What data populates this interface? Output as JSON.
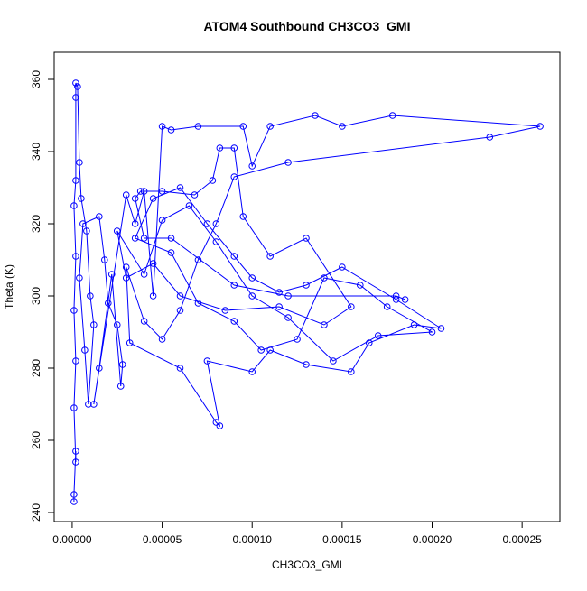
{
  "chart_data": {
    "type": "line",
    "title": "ATOM4 Southbound CH3CO3_GMI",
    "x_label": "CH3CO3_GMI",
    "y_label": "Theta (K)",
    "xlim": [
      -1e-05,
      0.000271
    ],
    "ylim": [
      237.5,
      367.5
    ],
    "xticks": [
      {
        "value": 0,
        "label": "0.00000"
      },
      {
        "value": 5e-05,
        "label": "0.00005"
      },
      {
        "value": 0.0001,
        "label": "0.00010"
      },
      {
        "value": 0.00015,
        "label": "0.00015"
      },
      {
        "value": 0.0002,
        "label": "0.00020"
      },
      {
        "value": 0.00025,
        "label": "0.00025"
      }
    ],
    "yticks": [
      240,
      260,
      280,
      300,
      320,
      340,
      360
    ],
    "color": "#0000ff",
    "x": [
      1e-06,
      1e-06,
      2e-06,
      2e-06,
      1e-06,
      2e-06,
      1e-06,
      2e-06,
      1e-06,
      2e-06,
      2e-06,
      2e-06,
      3e-06,
      4e-06,
      5e-06,
      8e-06,
      1e-05,
      1.2e-05,
      9e-06,
      7e-06,
      4e-06,
      6e-06,
      1.5e-05,
      1.8e-05,
      2e-05,
      2.5e-05,
      2.8e-05,
      2.7e-05,
      2.2e-05,
      1.5e-05,
      1.2e-05,
      3e-05,
      3.5e-05,
      4e-05,
      4.5e-05,
      5e-05,
      5.5e-05,
      7e-05,
      9.5e-05,
      0.0001,
      0.00011,
      0.000135,
      0.00015,
      0.000178,
      0.00026,
      0.000232,
      0.00012,
      9e-05,
      8e-05,
      7e-05,
      6e-05,
      5e-05,
      4e-05,
      3e-05,
      3.2e-05,
      6e-05,
      8e-05,
      8.2e-05,
      7.5e-05,
      0.0001,
      0.00011,
      0.00013,
      0.000155,
      0.000165,
      0.00019,
      0.000205,
      0.00018,
      0.00015,
      0.00013,
      0.000115,
      0.0001,
      9e-05,
      7.5e-05,
      6e-05,
      4.5e-05,
      3.5e-05,
      5.5e-05,
      7e-05,
      9e-05,
      0.000105,
      0.000125,
      0.00014,
      0.00016,
      0.000175,
      0.0002,
      0.00017,
      0.000145,
      0.00012,
      0.0001,
      8e-05,
      6.5e-05,
      5e-05,
      4e-05,
      2.5e-05,
      3e-05,
      4.5e-05,
      6e-05,
      8.5e-05,
      0.000115,
      0.00014,
      0.000155,
      0.00013,
      0.00011,
      9.5e-05,
      9e-05,
      8.2e-05,
      7.8e-05,
      6.8e-05,
      5e-05,
      3.8e-05,
      3.5e-05,
      4e-05,
      5.5e-05,
      9e-05,
      0.00012,
      0.00018,
      0.000185
    ],
    "values": [
      243,
      245,
      257,
      254,
      269,
      282,
      296,
      311,
      325,
      332,
      355,
      359,
      358,
      337,
      327,
      318,
      300,
      292,
      270,
      285,
      305,
      320,
      322,
      310,
      298,
      292,
      281,
      275,
      306,
      280,
      270,
      328,
      320,
      329,
      300,
      347,
      346,
      347,
      347,
      336,
      347,
      350,
      347,
      350,
      347,
      344,
      337,
      333,
      320,
      310,
      296,
      288,
      293,
      308,
      287,
      280,
      265,
      264,
      282,
      279,
      285,
      281,
      279,
      287,
      292,
      291,
      299,
      308,
      303,
      301,
      305,
      311,
      320,
      330,
      327,
      316,
      312,
      298,
      293,
      285,
      288,
      305,
      303,
      297,
      290,
      289,
      282,
      294,
      300,
      315,
      325,
      321,
      306,
      318,
      305,
      309,
      300,
      296,
      297,
      292,
      297,
      316,
      311,
      322,
      341,
      341,
      332,
      328,
      329,
      329,
      327,
      316,
      316,
      303,
      300,
      300,
      299
    ]
  }
}
